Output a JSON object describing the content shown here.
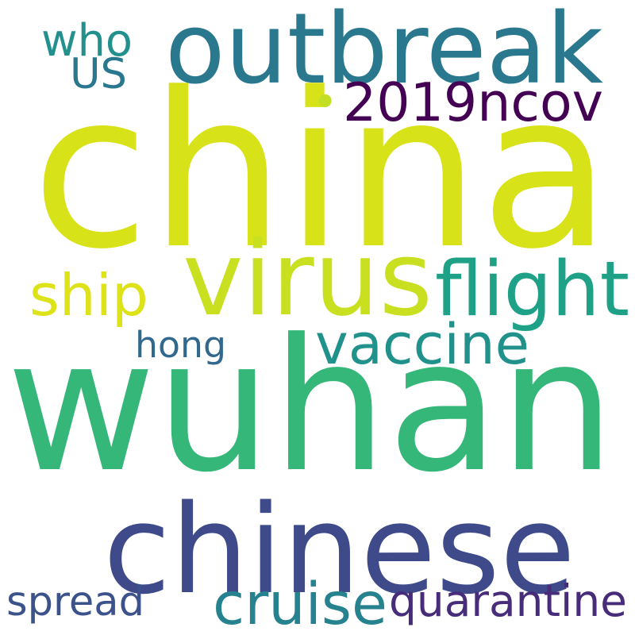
{
  "word_cloud": {
    "words": [
      {
        "text": "china",
        "color": "#d8e219"
      },
      {
        "text": "wuhan",
        "color": "#35b779"
      },
      {
        "text": "chinese",
        "color": "#3e4a89"
      },
      {
        "text": "outbreak",
        "color": "#2a788e"
      },
      {
        "text": "virus",
        "color": "#c8e020"
      },
      {
        "text": "flight",
        "color": "#1fa187"
      },
      {
        "text": "vaccine",
        "color": "#21918c"
      },
      {
        "text": "2019ncov",
        "color": "#440154"
      },
      {
        "text": "who",
        "color": "#22908c"
      },
      {
        "text": "US",
        "color": "#2a788e"
      },
      {
        "text": "ship",
        "color": "#dde318"
      },
      {
        "text": "hong",
        "color": "#31688e"
      },
      {
        "text": "cruise",
        "color": "#26828e"
      },
      {
        "text": "quarantine",
        "color": "#472c7a"
      },
      {
        "text": "spread",
        "color": "#3b528b"
      },
      {
        "text": "•",
        "color": "#c2df23"
      }
    ]
  }
}
